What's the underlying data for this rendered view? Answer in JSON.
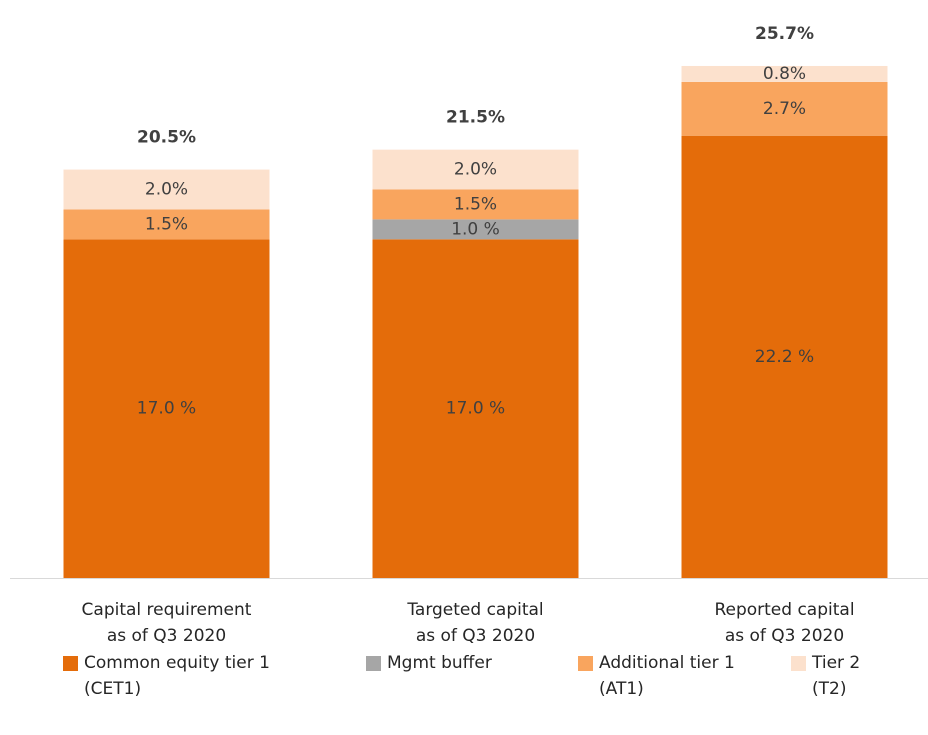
{
  "chart_data": {
    "type": "stacked_bar",
    "categories": [
      "Capital requirement\nas of Q3 2020",
      "Targeted capital\nas of Q3 2020",
      "Reported capital\nas of Q3 2020"
    ],
    "series": [
      {
        "name": "Common equity tier 1\n(CET1)",
        "color": "#e46c0a",
        "values": [
          17.0,
          17.0,
          22.2
        ],
        "value_labels": [
          "17.0 %",
          "17.0 %",
          "22.2 %"
        ]
      },
      {
        "name": "Mgmt buffer",
        "color": "#a6a6a6",
        "values": [
          null,
          1.0,
          null
        ],
        "value_labels": [
          null,
          "1.0 %",
          null
        ]
      },
      {
        "name": "Additional tier 1\n(AT1)",
        "color": "#f9a55e",
        "values": [
          1.5,
          1.5,
          2.7
        ],
        "value_labels": [
          "1.5%",
          "1.5%",
          "2.7%"
        ]
      },
      {
        "name": "Tier 2\n(T2)",
        "color": "#fce1cd",
        "values": [
          2.0,
          2.0,
          0.8
        ],
        "value_labels": [
          "2.0%",
          "2.0%",
          "0.8%"
        ]
      }
    ],
    "totals": [
      20.5,
      21.5,
      25.7
    ],
    "total_labels": [
      "20.5%",
      "21.5%",
      "25.7%"
    ],
    "ylim": [
      0,
      26
    ]
  }
}
